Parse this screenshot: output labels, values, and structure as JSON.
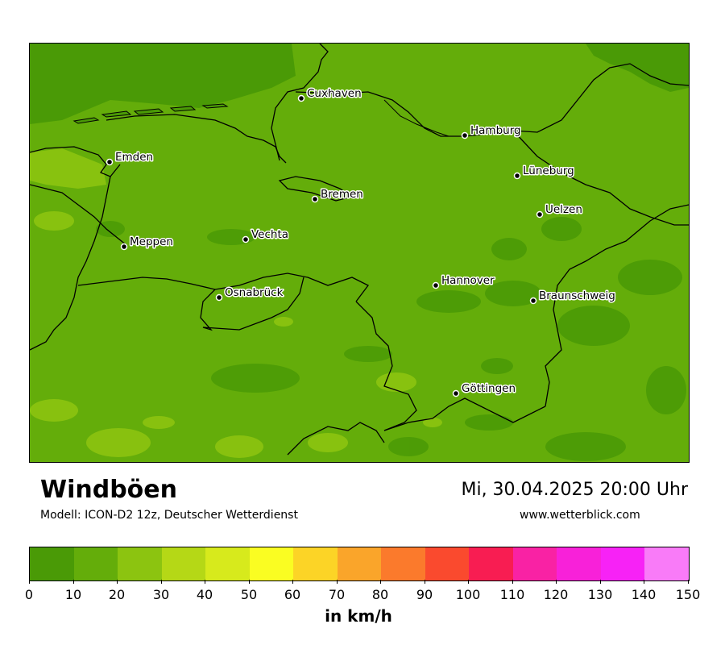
{
  "map": {
    "title": "Windböen",
    "subtitle": "Modell: ICON-D2 12z, Deutscher Wetterdienst",
    "datetime": "Mi, 30.04.2025 20:00 Uhr",
    "website": "www.wetterblick.com",
    "unit": "in km/h",
    "base_color": "#64ad0a",
    "cities": [
      {
        "name": "Cuxhaven"
      },
      {
        "name": "Hamburg"
      },
      {
        "name": "Emden"
      },
      {
        "name": "Bremen"
      },
      {
        "name": "Lüneburg"
      },
      {
        "name": "Uelzen"
      },
      {
        "name": "Vechta"
      },
      {
        "name": "Meppen"
      },
      {
        "name": "Hannover"
      },
      {
        "name": "Osnabrück"
      },
      {
        "name": "Braunschweig"
      },
      {
        "name": "Göttingen"
      }
    ]
  },
  "legend": {
    "ticks": [
      "0",
      "10",
      "20",
      "30",
      "40",
      "50",
      "60",
      "70",
      "80",
      "90",
      "100",
      "110",
      "120",
      "130",
      "140",
      "150"
    ],
    "colors": [
      "#4a9a06",
      "#64ad0a",
      "#8cc410",
      "#b5d816",
      "#d7ea1c",
      "#fafd22",
      "#fcd426",
      "#faa52a",
      "#fb7a2c",
      "#fa4a2e",
      "#f81d52",
      "#f922a4",
      "#f821d9",
      "#f722f6",
      "#f97bf8"
    ]
  }
}
